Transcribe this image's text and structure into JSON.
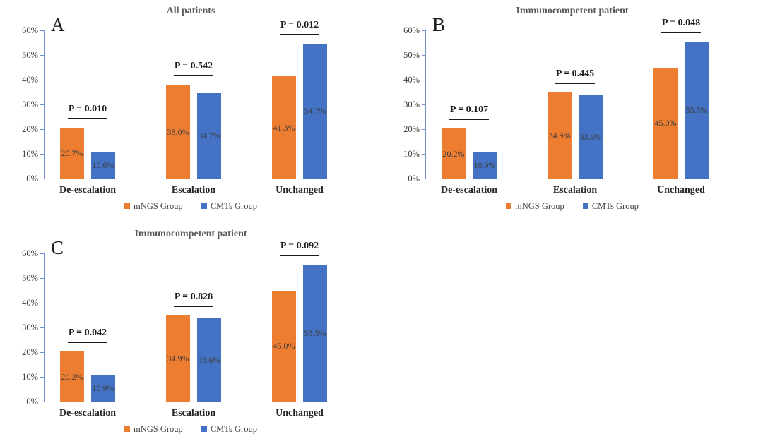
{
  "style": {
    "background": "#ffffff",
    "orange": "#ED7D31",
    "blue": "#4472C4",
    "axis_color": "#6E93D0",
    "baseline_color": "#D9D9D9",
    "sig_line_color": "#1a1a1a",
    "title_color": "#595959",
    "tick_label_color": "#404040",
    "data_label_color": "#3d3d3d"
  },
  "chart_data": [
    {
      "type": "bar",
      "panel_label": "A",
      "title": "All patients",
      "categories": [
        "De-escalation",
        "Escalation",
        "Unchanged"
      ],
      "series": [
        {
          "name": "mNGS Group",
          "color": "#ED7D31",
          "values": [
            20.7,
            38.0,
            41.3
          ]
        },
        {
          "name": "CMTs Group",
          "color": "#4472C4",
          "values": [
            10.6,
            34.7,
            54.7
          ]
        }
      ],
      "data_labels": [
        [
          "20.7%",
          "38.0%",
          "41.3%"
        ],
        [
          "10.6%",
          "34.7%",
          "54.7%"
        ]
      ],
      "p_values": [
        "P = 0.010",
        "P = 0.542",
        "P = 0.012"
      ],
      "ylim": [
        0,
        60
      ],
      "yticks": [
        "0%",
        "10%",
        "20%",
        "30%",
        "40%",
        "50%",
        "60%"
      ],
      "grid": false,
      "legend_position": "bottom"
    },
    {
      "type": "bar",
      "panel_label": "B",
      "title": "Immunocompetent patient",
      "categories": [
        "De-escalation",
        "Escalation",
        "Unchanged"
      ],
      "series": [
        {
          "name": "mNGS Group",
          "color": "#ED7D31",
          "values": [
            20.2,
            34.9,
            45.0
          ]
        },
        {
          "name": "CMTs Group",
          "color": "#4472C4",
          "values": [
            10.9,
            33.6,
            55.5
          ]
        }
      ],
      "data_labels": [
        [
          "20.2%",
          "34.9%",
          "45.0%"
        ],
        [
          "10.9%",
          "33.6%",
          "55.5%"
        ]
      ],
      "p_values": [
        "P = 0.107",
        "P = 0.445",
        "P = 0.048"
      ],
      "ylim": [
        0,
        60
      ],
      "yticks": [
        "0%",
        "10%",
        "20%",
        "30%",
        "40%",
        "50%",
        "60%"
      ],
      "grid": false,
      "legend_position": "bottom"
    },
    {
      "type": "bar",
      "panel_label": "C",
      "title": "Immunocompetent patient",
      "categories": [
        "De-escalation",
        "Escalation",
        "Unchanged"
      ],
      "series": [
        {
          "name": "mNGS Group",
          "color": "#ED7D31",
          "values": [
            20.2,
            34.9,
            45.0
          ]
        },
        {
          "name": "CMTs Group",
          "color": "#4472C4",
          "values": [
            10.9,
            33.6,
            55.5
          ]
        }
      ],
      "data_labels": [
        [
          "20.2%",
          "34.9%",
          "45.0%"
        ],
        [
          "10.9%",
          "33.6%",
          "55.5%"
        ]
      ],
      "p_values": [
        "P = 0.042",
        "P = 0.828",
        "P = 0.092"
      ],
      "ylim": [
        0,
        60
      ],
      "yticks": [
        "0%",
        "10%",
        "20%",
        "30%",
        "40%",
        "50%",
        "60%"
      ],
      "grid": false,
      "legend_position": "bottom"
    }
  ]
}
